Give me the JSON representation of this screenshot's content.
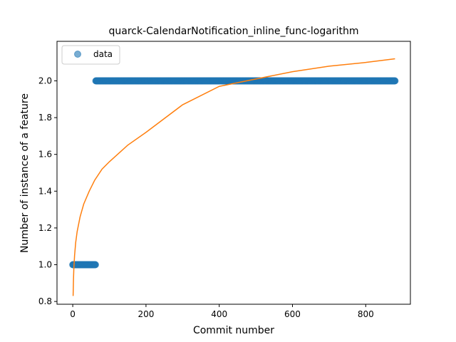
{
  "chart_data": {
    "type": "scatter",
    "title": "quarck-CalendarNotification_inline_func-logarithm",
    "xlabel": "Commit number",
    "ylabel": "Number of instance of a feature",
    "xlim": [
      -43,
      922
    ],
    "ylim": [
      0.785,
      2.215
    ],
    "xticks": [
      0,
      200,
      400,
      600,
      800
    ],
    "yticks": [
      0.8,
      1.0,
      1.2,
      1.4,
      1.6,
      1.8,
      2.0
    ],
    "grid": false,
    "legend": {
      "placement": "top-left",
      "entries": [
        "data"
      ]
    },
    "series": [
      {
        "name": "data",
        "kind": "scatter",
        "color": "#1f77b4",
        "segments": [
          {
            "x_start": 0,
            "x_end": 62,
            "y": 1.0
          },
          {
            "x_start": 63,
            "x_end": 880,
            "y": 2.0
          }
        ]
      },
      {
        "kind": "line",
        "color": "#ff7f0e",
        "x": [
          1,
          2,
          3,
          5,
          8,
          12,
          20,
          30,
          45,
          60,
          80,
          100,
          150,
          200,
          300,
          400,
          500,
          600,
          700,
          800,
          880
        ],
        "y": [
          0.83,
          0.92,
          0.98,
          1.05,
          1.12,
          1.18,
          1.26,
          1.33,
          1.4,
          1.46,
          1.52,
          1.56,
          1.65,
          1.72,
          1.87,
          1.97,
          2.01,
          2.05,
          2.08,
          2.1,
          2.12
        ]
      }
    ]
  }
}
